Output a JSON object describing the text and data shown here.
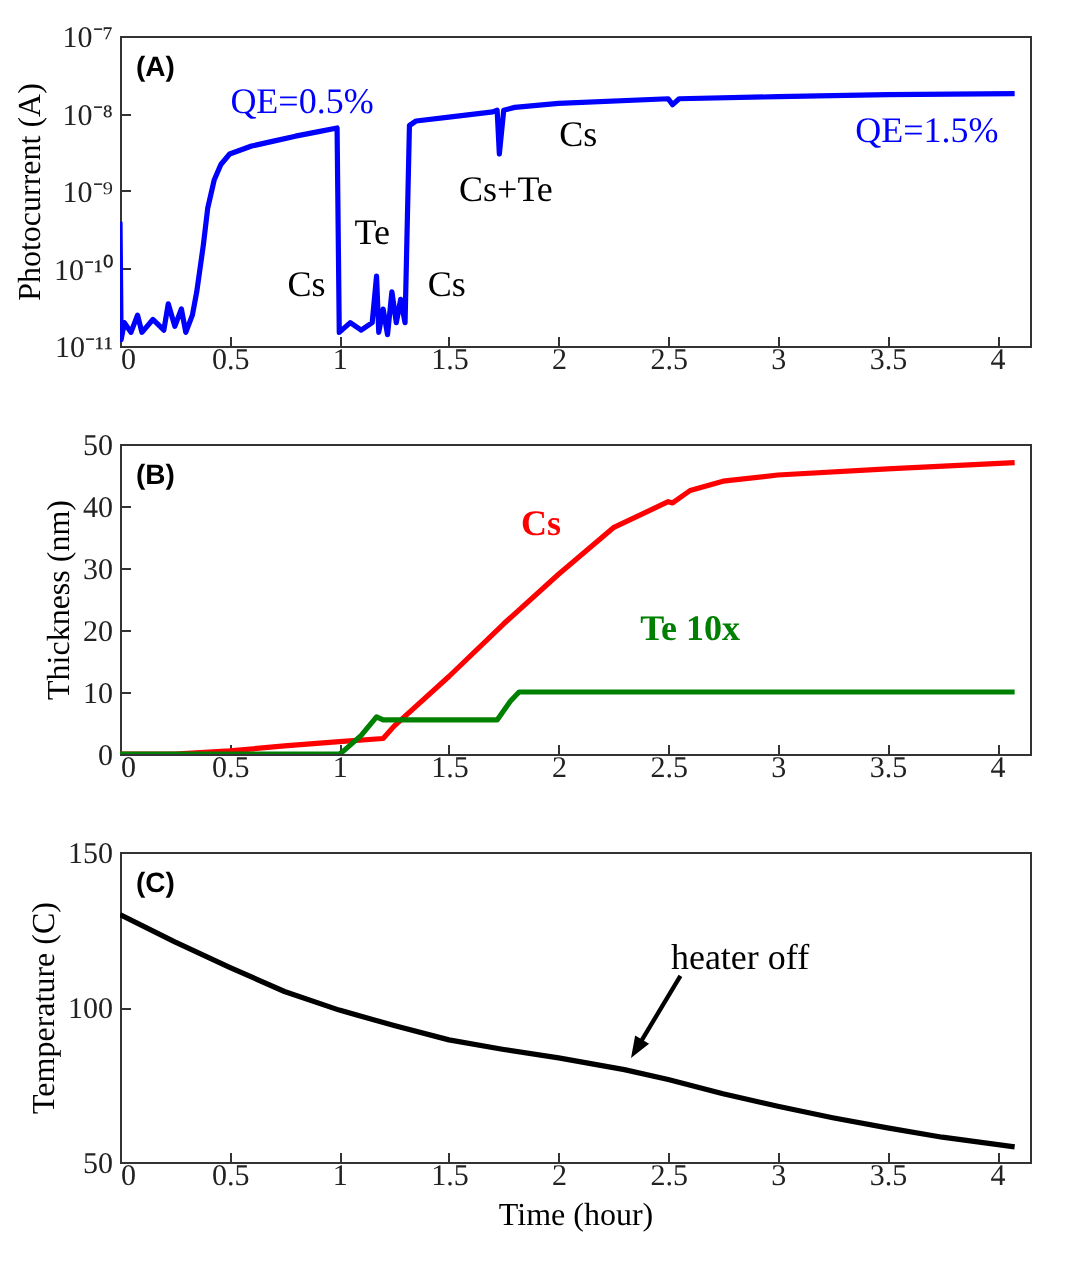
{
  "chart_data": [
    {
      "type": "line",
      "ylabel": "Photocurrent (A)",
      "log": "y",
      "grid": false,
      "marker": "none",
      "line_style": "solid",
      "xlim": [
        0,
        4.15
      ],
      "xticks": [
        0,
        0.5,
        1,
        1.5,
        2,
        2.5,
        3,
        3.5,
        4
      ],
      "ylim": [
        1e-11,
        1e-07
      ],
      "yticks": [
        {
          "value": 1e-11,
          "label": "10⁻¹¹"
        },
        {
          "value": 1e-10,
          "label": "10⁻¹⁰"
        },
        {
          "value": 1e-09,
          "label": "10⁻⁹"
        },
        {
          "value": 1e-08,
          "label": "10⁻⁸"
        },
        {
          "value": 1e-07,
          "label": "10⁻⁷"
        }
      ],
      "x": [
        0,
        0.005,
        0.02,
        0.05,
        0.08,
        0.1,
        0.15,
        0.2,
        0.22,
        0.25,
        0.28,
        0.3,
        0.33,
        0.35,
        0.38,
        0.4,
        0.43,
        0.46,
        0.5,
        0.6,
        0.7,
        0.8,
        0.9,
        0.99,
        1.0,
        1.05,
        1.1,
        1.15,
        1.17,
        1.18,
        1.2,
        1.22,
        1.24,
        1.26,
        1.28,
        1.3,
        1.32,
        1.35,
        1.5,
        1.7,
        1.72,
        1.73,
        1.75,
        1.8,
        2.0,
        2.5,
        2.52,
        2.55,
        3.0,
        3.5,
        4.08
      ],
      "series": [
        {
          "color": "#0000ff",
          "values": [
            4e-10,
            1.2e-11,
            2e-11,
            1.5e-11,
            2.5e-11,
            1.5e-11,
            2.2e-11,
            1.6e-11,
            3.5e-11,
            1.8e-11,
            3e-11,
            1.5e-11,
            2.5e-11,
            5e-11,
            2e-10,
            6e-10,
            1.4e-09,
            2.2e-09,
            3e-09,
            3.8e-09,
            4.4e-09,
            5.1e-09,
            5.8e-09,
            6.5e-09,
            1.5e-11,
            2e-11,
            1.6e-11,
            2e-11,
            8e-11,
            1.5e-11,
            3e-11,
            1.4e-11,
            5e-11,
            2e-11,
            4e-11,
            2e-11,
            7e-09,
            8e-09,
            9e-09,
            1.05e-08,
            1.1e-08,
            3e-09,
            1.1e-08,
            1.2e-08,
            1.35e-08,
            1.55e-08,
            1.3e-08,
            1.55e-08,
            1.65e-08,
            1.75e-08,
            1.8e-08
          ]
        }
      ],
      "annotations": [
        "(A)",
        "QE=0.5%",
        "Cs",
        "Te",
        "Cs",
        "Cs+Te",
        "Cs",
        "QE=1.5%"
      ]
    },
    {
      "type": "line",
      "ylabel": "Thickness (nm)",
      "grid": false,
      "marker": "none",
      "line_style": "solid",
      "xlim": [
        0,
        4.15
      ],
      "xticks": [
        0,
        0.5,
        1,
        1.5,
        2,
        2.5,
        3,
        3.5,
        4
      ],
      "ylim": [
        0,
        50
      ],
      "yticks": [
        0,
        10,
        20,
        30,
        40,
        50
      ],
      "series": [
        {
          "name": "Cs",
          "color": "#ff0000",
          "x": [
            0,
            0.25,
            0.5,
            0.75,
            1.0,
            1.2,
            1.25,
            1.5,
            1.75,
            2.0,
            2.25,
            2.5,
            2.52,
            2.6,
            2.75,
            3.0,
            3.5,
            4.08
          ],
          "values": [
            0,
            0,
            0.5,
            1.3,
            2,
            2.5,
            4.5,
            12.5,
            21,
            29,
            36.5,
            40.7,
            40.5,
            42.5,
            44,
            45,
            46,
            47
          ]
        },
        {
          "name": "Te 10x",
          "color": "#008000",
          "x": [
            0,
            1.0,
            1.02,
            1.1,
            1.17,
            1.2,
            1.72,
            1.78,
            1.82,
            4.08
          ],
          "values": [
            0,
            0,
            0.5,
            3,
            6,
            5.5,
            5.5,
            8.5,
            10,
            10
          ]
        }
      ],
      "annotations": [
        "(B)"
      ]
    },
    {
      "type": "line",
      "xlabel": "Time (hour)",
      "ylabel": "Temperature (C)",
      "grid": false,
      "marker": "none",
      "line_style": "solid",
      "xlim": [
        0,
        4.15
      ],
      "xticks": [
        0,
        0.5,
        1,
        1.5,
        2,
        2.5,
        3,
        3.5,
        4
      ],
      "ylim": [
        50,
        150
      ],
      "yticks": [
        50,
        100,
        150
      ],
      "x": [
        0,
        0.25,
        0.5,
        0.75,
        1.0,
        1.25,
        1.5,
        1.75,
        2.0,
        2.3,
        2.5,
        2.75,
        3.0,
        3.25,
        3.5,
        3.75,
        4.08
      ],
      "series": [
        {
          "color": "#000000",
          "values": [
            129.8,
            121,
            112.8,
            105,
            99,
            94,
            89.4,
            86.3,
            83.6,
            79.8,
            76.6,
            72,
            68,
            64.3,
            61,
            58,
            54.9
          ]
        }
      ],
      "annotations": [
        "(C)",
        {
          "text": "heater off",
          "x": 2.33,
          "y": 80
        }
      ]
    }
  ]
}
